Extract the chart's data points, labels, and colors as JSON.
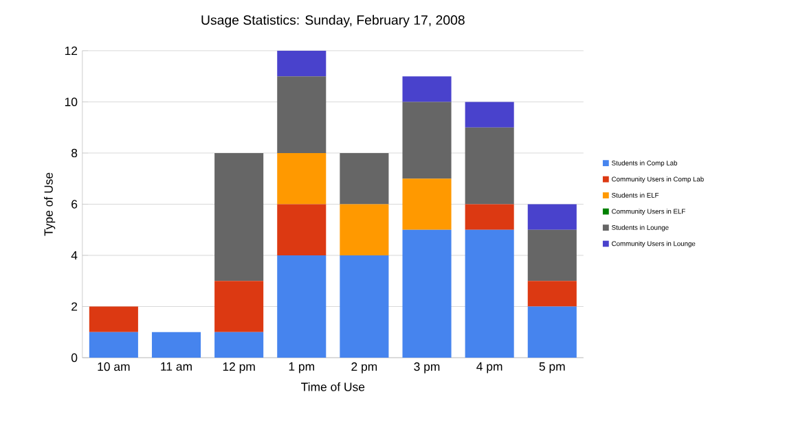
{
  "chart_data": {
    "type": "bar",
    "title": "Usage Statistics: Sunday, February 17, 2008",
    "xlabel": "Time of Use",
    "ylabel": "Type of Use",
    "categories": [
      "10 am",
      "11 am",
      "12 pm",
      "1 pm",
      "2 pm",
      "3 pm",
      "4 pm",
      "5 pm"
    ],
    "stacked": true,
    "ylim": [
      0,
      12
    ],
    "yticks": [
      0,
      2,
      4,
      6,
      8,
      10,
      12
    ],
    "grid": "y",
    "legend": "right",
    "series": [
      {
        "name": "Students in Comp Lab",
        "color": "#4684ee",
        "values": [
          1,
          1,
          1,
          4,
          4,
          5,
          5,
          2
        ]
      },
      {
        "name": "Community Users in Comp Lab",
        "color": "#dc3912",
        "values": [
          1,
          0,
          2,
          2,
          0,
          0,
          1,
          1
        ]
      },
      {
        "name": "Students in ELF",
        "color": "#ff9900",
        "values": [
          0,
          0,
          0,
          2,
          2,
          2,
          0,
          0
        ]
      },
      {
        "name": "Community Users in ELF",
        "color": "#008000",
        "values": [
          0,
          0,
          0,
          0,
          0,
          0,
          0,
          0
        ]
      },
      {
        "name": "Students in Lounge",
        "color": "#666666",
        "values": [
          0,
          0,
          5,
          3,
          2,
          3,
          3,
          2
        ]
      },
      {
        "name": "Community Users in Lounge",
        "color": "#4942cc",
        "values": [
          0,
          0,
          0,
          1,
          0,
          1,
          1,
          1
        ]
      }
    ]
  }
}
